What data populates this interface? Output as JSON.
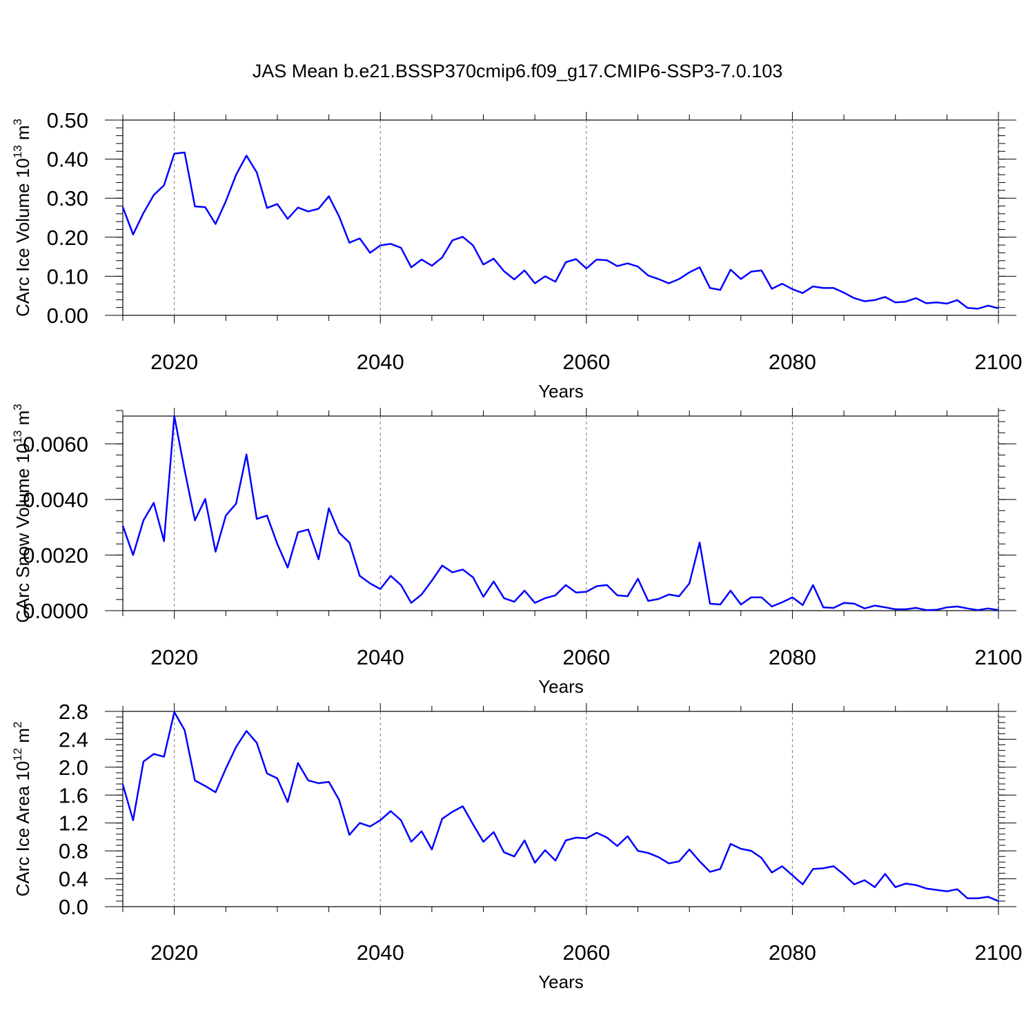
{
  "chart_data": [
    {
      "type": "line",
      "title": "JAS Mean b.e21.BSSP370cmip6.f09_g17.CMIP6-SSP3-7.0.103",
      "xlabel": "Years",
      "ylabel": {
        "text": "CArc Ice Volume 10",
        "exponent": "13",
        "unit": " m",
        "unit_exponent": "3"
      },
      "xlim": [
        2015,
        2100
      ],
      "ylim": [
        0.0,
        0.5
      ],
      "xticks": [
        2020,
        2040,
        2060,
        2080,
        2100
      ],
      "xtick_labels": [
        "2020",
        "2040",
        "2060",
        "2080",
        "2100"
      ],
      "yticks": [
        0.0,
        0.1,
        0.2,
        0.3,
        0.4,
        0.5
      ],
      "ytick_labels": [
        "0.00",
        "0.10",
        "0.20",
        "0.30",
        "0.40",
        "0.50"
      ],
      "grid": "vertical dashed at major x ticks",
      "series": [
        {
          "name": "CArc Ice Volume",
          "color": "#0000ff",
          "x_start": 2015,
          "values": [
            0.277,
            0.207,
            0.262,
            0.308,
            0.333,
            0.414,
            0.417,
            0.279,
            0.277,
            0.234,
            0.292,
            0.36,
            0.409,
            0.366,
            0.275,
            0.285,
            0.247,
            0.276,
            0.266,
            0.273,
            0.305,
            0.253,
            0.186,
            0.197,
            0.16,
            0.179,
            0.183,
            0.173,
            0.123,
            0.143,
            0.127,
            0.148,
            0.192,
            0.201,
            0.179,
            0.13,
            0.145,
            0.113,
            0.092,
            0.115,
            0.082,
            0.1,
            0.086,
            0.136,
            0.144,
            0.12,
            0.143,
            0.141,
            0.126,
            0.133,
            0.125,
            0.102,
            0.093,
            0.082,
            0.093,
            0.11,
            0.123,
            0.07,
            0.065,
            0.117,
            0.093,
            0.112,
            0.115,
            0.068,
            0.081,
            0.067,
            0.057,
            0.074,
            0.07,
            0.07,
            0.058,
            0.044,
            0.036,
            0.039,
            0.047,
            0.033,
            0.035,
            0.044,
            0.031,
            0.033,
            0.03,
            0.039,
            0.019,
            0.017,
            0.025,
            0.018
          ]
        }
      ]
    },
    {
      "type": "line",
      "title": "",
      "xlabel": "Years",
      "ylabel": {
        "text": "CArc Snow Volume 10",
        "exponent": "13",
        "unit": " m",
        "unit_exponent": "3"
      },
      "xlim": [
        2015,
        2100
      ],
      "ylim": [
        0.0,
        0.007
      ],
      "xticks": [
        2020,
        2040,
        2060,
        2080,
        2100
      ],
      "xtick_labels": [
        "2020",
        "2040",
        "2060",
        "2080",
        "2100"
      ],
      "yticks": [
        0.0,
        0.002,
        0.004,
        0.006
      ],
      "ytick_labels": [
        "0.0000",
        "0.0020",
        "0.0040",
        "0.0060"
      ],
      "grid": "vertical dashed at major x ticks",
      "series": [
        {
          "name": "CArc Snow Volume",
          "color": "#0000ff",
          "x_start": 2015,
          "values": [
            0.00305,
            0.002,
            0.00325,
            0.00388,
            0.0025,
            0.007,
            0.00505,
            0.00325,
            0.00402,
            0.00212,
            0.00342,
            0.00385,
            0.00562,
            0.0033,
            0.00342,
            0.0024,
            0.00155,
            0.00282,
            0.00292,
            0.00185,
            0.00368,
            0.0028,
            0.00245,
            0.00125,
            0.00098,
            0.00078,
            0.00125,
            0.00092,
            0.00028,
            0.00058,
            0.00108,
            0.00162,
            0.00138,
            0.00148,
            0.0012,
            0.0005,
            0.00105,
            0.00045,
            0.00032,
            0.00072,
            0.00028,
            0.00045,
            0.00055,
            0.00092,
            0.00065,
            0.00068,
            0.00088,
            0.00092,
            0.00055,
            0.00052,
            0.00115,
            0.00035,
            0.00042,
            0.00058,
            0.00052,
            0.00098,
            0.00245,
            0.00025,
            0.00022,
            0.00072,
            0.00022,
            0.00048,
            0.00048,
            0.00015,
            0.0003,
            0.00048,
            0.0002,
            0.00092,
            0.00012,
            0.0001,
            0.00028,
            0.00025,
            8e-05,
            0.00018,
            0.00012,
            5e-05,
            5e-05,
            0.0001,
            2e-05,
            3e-05,
            0.00012,
            0.00015,
            8e-05,
            2e-05,
            8e-05,
            2e-05
          ]
        }
      ]
    },
    {
      "type": "line",
      "title": "",
      "xlabel": "Years",
      "ylabel": {
        "text": "CArc Ice Area 10",
        "exponent": "12",
        "unit": " m",
        "unit_exponent": "2"
      },
      "xlim": [
        2015,
        2100
      ],
      "ylim": [
        0.0,
        2.8
      ],
      "xticks": [
        2020,
        2040,
        2060,
        2080,
        2100
      ],
      "xtick_labels": [
        "2020",
        "2040",
        "2060",
        "2080",
        "2100"
      ],
      "yticks": [
        0.0,
        0.4,
        0.8,
        1.2,
        1.6,
        2.0,
        2.4,
        2.8
      ],
      "ytick_labels": [
        "0.0",
        "0.4",
        "0.8",
        "1.2",
        "1.6",
        "2.0",
        "2.4",
        "2.8"
      ],
      "grid": "vertical dashed at major x ticks",
      "series": [
        {
          "name": "CArc Ice Area",
          "color": "#0000ff",
          "x_start": 2015,
          "values": [
            1.75,
            1.24,
            2.08,
            2.19,
            2.15,
            2.79,
            2.53,
            1.81,
            1.73,
            1.64,
            1.98,
            2.29,
            2.52,
            2.35,
            1.91,
            1.84,
            1.5,
            2.06,
            1.81,
            1.77,
            1.79,
            1.53,
            1.03,
            1.2,
            1.15,
            1.24,
            1.37,
            1.24,
            0.93,
            1.08,
            0.82,
            1.26,
            1.36,
            1.44,
            1.18,
            0.93,
            1.07,
            0.78,
            0.72,
            0.95,
            0.63,
            0.81,
            0.66,
            0.95,
            0.99,
            0.98,
            1.06,
            0.99,
            0.87,
            1.01,
            0.8,
            0.77,
            0.71,
            0.62,
            0.65,
            0.82,
            0.65,
            0.5,
            0.54,
            0.9,
            0.83,
            0.8,
            0.7,
            0.49,
            0.58,
            0.45,
            0.32,
            0.54,
            0.55,
            0.58,
            0.46,
            0.32,
            0.38,
            0.28,
            0.47,
            0.28,
            0.33,
            0.31,
            0.26,
            0.24,
            0.22,
            0.25,
            0.12,
            0.12,
            0.14,
            0.08
          ]
        }
      ]
    }
  ]
}
